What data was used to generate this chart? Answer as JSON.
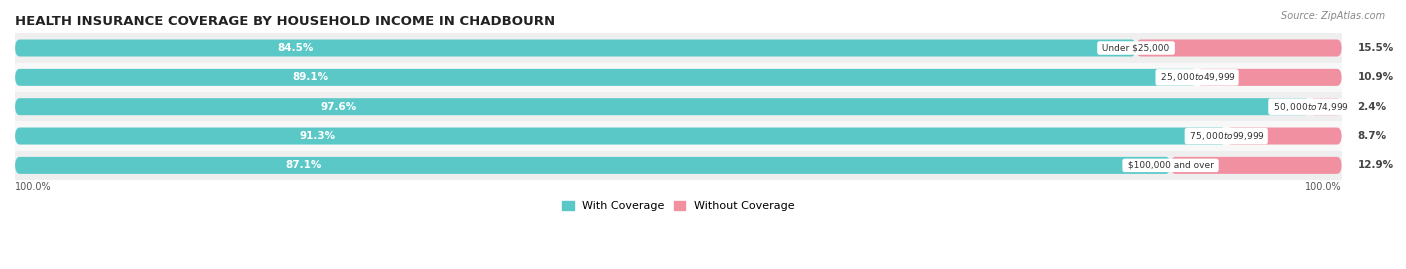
{
  "title": "HEALTH INSURANCE COVERAGE BY HOUSEHOLD INCOME IN CHADBOURN",
  "source": "Source: ZipAtlas.com",
  "categories": [
    "Under $25,000",
    "$25,000 to $49,999",
    "$50,000 to $74,999",
    "$75,000 to $99,999",
    "$100,000 and over"
  ],
  "with_coverage": [
    84.5,
    89.1,
    97.6,
    91.3,
    87.1
  ],
  "without_coverage": [
    15.5,
    10.9,
    2.4,
    8.7,
    12.9
  ],
  "with_coverage_color": "#5bc8c8",
  "without_coverage_color": "#f090a0",
  "row_bg_colors": [
    "#efefef",
    "#ffffff"
  ],
  "label_color_with": "#ffffff",
  "label_color_without": "#444444",
  "category_label_color": "#333333",
  "title_fontsize": 9.5,
  "label_fontsize": 7.5,
  "legend_fontsize": 8,
  "bar_height": 0.58,
  "xlim": [
    0,
    100
  ],
  "bottom_labels": [
    "100.0%",
    "100.0%"
  ],
  "figsize": [
    14.06,
    2.69
  ],
  "dpi": 100
}
